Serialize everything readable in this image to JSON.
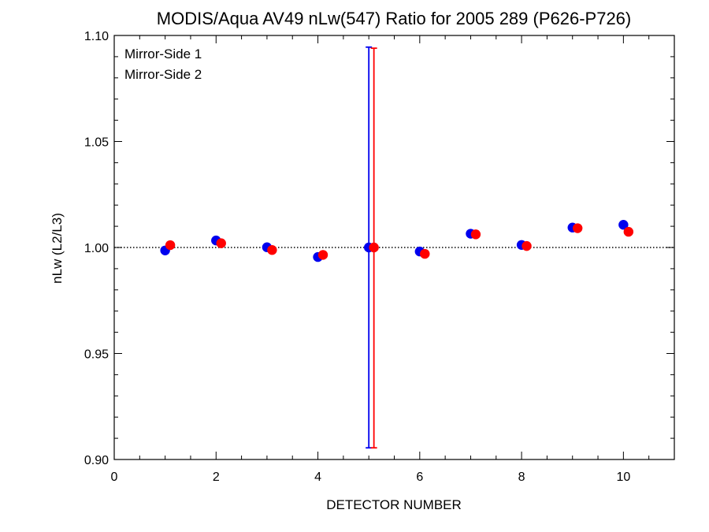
{
  "chart_data": {
    "type": "scatter",
    "title": "MODIS/Aqua AV49 nLw(547) Ratio for 2005 289 (P626-P726)",
    "xlabel": "DETECTOR NUMBER",
    "ylabel": "nLw (L2/L3)",
    "xlim": [
      0,
      11
    ],
    "ylim": [
      0.9,
      1.1
    ],
    "x_ticks": [
      0,
      2,
      4,
      6,
      8,
      10
    ],
    "x_tick_labels": [
      "0",
      "2",
      "4",
      "6",
      "8",
      "10"
    ],
    "y_ticks": [
      0.9,
      0.95,
      1.0,
      1.05,
      1.1
    ],
    "y_tick_labels": [
      "0.90",
      "0.95",
      "1.00",
      "1.05",
      "1.10"
    ],
    "reference_line": {
      "y": 1.0,
      "style": "dotted"
    },
    "legend_position": "top-left",
    "series": [
      {
        "name": "Mirror-Side 1",
        "color": "#0000ee",
        "x": [
          1,
          2,
          3,
          4,
          5,
          6,
          7,
          8,
          9,
          10
        ],
        "y": [
          0.9986,
          1.0033,
          1.0001,
          0.9955,
          1.0,
          0.9981,
          1.0065,
          1.0012,
          1.0094,
          1.0107
        ],
        "error_bars": [
          {
            "x": 5,
            "low": 0.9055,
            "high": 1.0945
          }
        ]
      },
      {
        "name": "Mirror-Side 2",
        "color": "#ff0000",
        "x": [
          1.1,
          2.1,
          3.1,
          4.1,
          5.1,
          6.1,
          7.1,
          8.1,
          9.1,
          10.1
        ],
        "y": [
          1.0011,
          1.002,
          0.9988,
          0.9965,
          1.0,
          0.997,
          1.0062,
          1.0007,
          1.0091,
          1.0074
        ],
        "error_bars": [
          {
            "x": 5.1,
            "low": 0.9055,
            "high": 1.094
          }
        ]
      }
    ]
  }
}
